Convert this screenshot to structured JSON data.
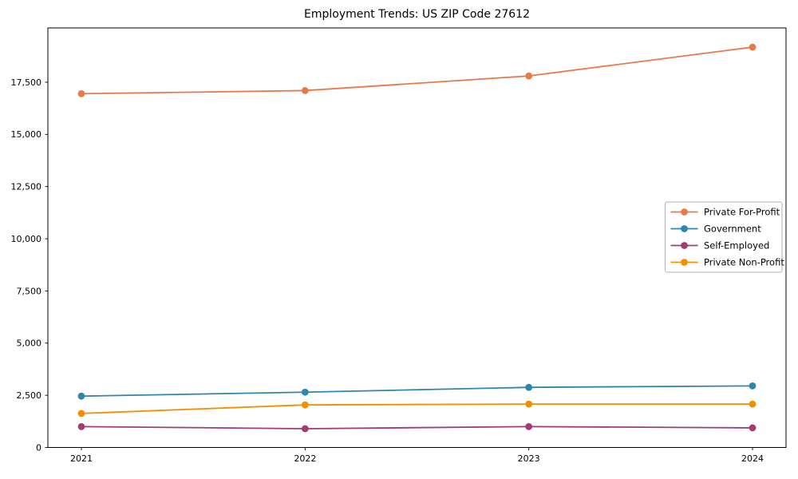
{
  "figure": {
    "background_color": "#ffffff",
    "axis_color": "#000000",
    "legend_frame_color": "#b0b0b0"
  },
  "chart_data": {
    "type": "line",
    "title": "Employment Trends: US ZIP Code 27612",
    "xlabel": "",
    "ylabel": "",
    "grid": false,
    "legend_position": "center right",
    "x": [
      2021,
      2022,
      2023,
      2024
    ],
    "x_tick_labels": [
      "2021",
      "2022",
      "2023",
      "2024"
    ],
    "ylim": [
      0,
      20100
    ],
    "yticks": [
      0,
      2500,
      5000,
      7500,
      10000,
      12500,
      15000,
      17500
    ],
    "ytick_labels": [
      "0",
      "2,500",
      "5,000",
      "7,500",
      "10,000",
      "12,500",
      "15,000",
      "17,500"
    ],
    "series": [
      {
        "name": "Private For-Profit",
        "color": "#E8794B",
        "values": [
          16950,
          17100,
          17800,
          19180
        ]
      },
      {
        "name": "Government",
        "color": "#2E86AB",
        "values": [
          2460,
          2650,
          2880,
          2950
        ]
      },
      {
        "name": "Self-Employed",
        "color": "#A23B72",
        "values": [
          1000,
          900,
          1000,
          940
        ]
      },
      {
        "name": "Private Non-Profit",
        "color": "#F18F01",
        "values": [
          1630,
          2040,
          2080,
          2080
        ]
      }
    ]
  }
}
